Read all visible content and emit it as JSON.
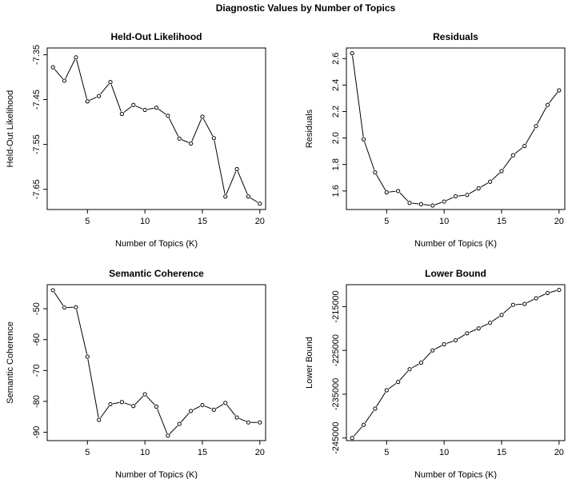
{
  "figure": {
    "title": "Diagnostic Values by Number of Topics"
  },
  "chart_data": [
    {
      "type": "line",
      "title": "Held-Out Likelihood",
      "xlabel": "Number of Topics (K)",
      "ylabel": "Held-Out Likelihood",
      "x": [
        2,
        3,
        4,
        5,
        6,
        7,
        8,
        9,
        10,
        11,
        12,
        13,
        14,
        15,
        16,
        17,
        18,
        19,
        20
      ],
      "values": [
        -7.378,
        -7.408,
        -7.356,
        -7.454,
        -7.442,
        -7.411,
        -7.482,
        -7.462,
        -7.473,
        -7.468,
        -7.486,
        -7.537,
        -7.548,
        -7.488,
        -7.536,
        -7.666,
        -7.605,
        -7.666,
        -7.682
      ],
      "xlim": [
        1.5,
        20.5
      ],
      "ylim": [
        -7.695,
        -7.335
      ],
      "xticks": [
        "5",
        "10",
        "15",
        "20"
      ],
      "yticks": [
        "-7.35",
        "-7.45",
        "-7.55",
        "-7.65"
      ],
      "marker": "open-circle",
      "grid": false
    },
    {
      "type": "line",
      "title": "Residuals",
      "xlabel": "Number of Topics (K)",
      "ylabel": "Residuals",
      "x": [
        2,
        3,
        4,
        5,
        6,
        7,
        8,
        9,
        10,
        11,
        12,
        13,
        14,
        15,
        16,
        17,
        18,
        19,
        20
      ],
      "values": [
        2.64,
        1.99,
        1.74,
        1.59,
        1.6,
        1.51,
        1.5,
        1.49,
        1.52,
        1.56,
        1.57,
        1.62,
        1.67,
        1.75,
        1.87,
        1.94,
        2.09,
        2.25,
        2.36
      ],
      "xlim": [
        1.5,
        20.5
      ],
      "ylim": [
        1.46,
        2.68
      ],
      "xticks": [
        "5",
        "10",
        "15",
        "20"
      ],
      "yticks": [
        "1.6",
        "1.8",
        "2.0",
        "2.2",
        "2.4",
        "2.6"
      ],
      "marker": "open-circle",
      "grid": false
    },
    {
      "type": "line",
      "title": "Semantic Coherence",
      "xlabel": "Number of Topics (K)",
      "ylabel": "Semantic Coherence",
      "x": [
        2,
        3,
        4,
        5,
        6,
        7,
        8,
        9,
        10,
        11,
        12,
        13,
        14,
        15,
        16,
        17,
        18,
        19,
        20
      ],
      "values": [
        -44.0,
        -49.6,
        -49.5,
        -65.5,
        -86.0,
        -80.9,
        -80.2,
        -81.5,
        -77.7,
        -81.7,
        -91.1,
        -87.3,
        -83.1,
        -81.2,
        -82.7,
        -80.5,
        -85.2,
        -86.8,
        -86.8
      ],
      "xlim": [
        1.5,
        20.5
      ],
      "ylim": [
        -92.7,
        -42.2
      ],
      "xticks": [
        "5",
        "10",
        "15",
        "20"
      ],
      "yticks": [
        "-50",
        "-60",
        "-70",
        "-80",
        "-90"
      ],
      "marker": "open-circle",
      "grid": false
    },
    {
      "type": "line",
      "title": "Lower Bound",
      "xlabel": "Number of Topics (K)",
      "ylabel": "Lower Bound",
      "x": [
        2,
        3,
        4,
        5,
        6,
        7,
        8,
        9,
        10,
        11,
        12,
        13,
        14,
        15,
        16,
        17,
        18,
        19,
        20
      ],
      "values": [
        -245000,
        -242000,
        -238300,
        -234100,
        -232200,
        -229300,
        -227800,
        -225000,
        -223600,
        -222700,
        -221100,
        -220000,
        -218700,
        -216900,
        -214600,
        -214400,
        -213100,
        -211900,
        -211200
      ],
      "xlim": [
        1.5,
        20.5
      ],
      "ylim": [
        -245600,
        -210000
      ],
      "xticks": [
        "5",
        "10",
        "15",
        "20"
      ],
      "yticks": [
        "-245000",
        "-235000",
        "-225000",
        "-215000"
      ],
      "marker": "open-circle",
      "grid": false
    }
  ]
}
